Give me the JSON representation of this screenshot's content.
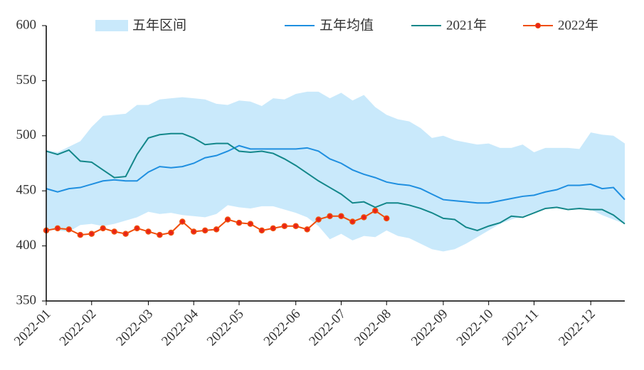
{
  "chart_data": {
    "type": "line",
    "categories": [
      "2022-01",
      null,
      null,
      null,
      "2022-02",
      null,
      null,
      null,
      null,
      "2022-03",
      null,
      null,
      null,
      "2022-04",
      null,
      null,
      null,
      "2022-05",
      null,
      null,
      null,
      null,
      "2022-06",
      null,
      null,
      null,
      "2022-07",
      null,
      null,
      null,
      "2022-08",
      null,
      null,
      null,
      null,
      "2022-09",
      null,
      null,
      null,
      "2022-10",
      null,
      null,
      null,
      "2022-11",
      null,
      null,
      null,
      null,
      "2022-12",
      null,
      null,
      null
    ],
    "band": {
      "name": "五年区间",
      "color": "#c9e9fb",
      "upper": [
        487,
        485,
        490,
        495,
        508,
        518,
        519,
        520,
        528,
        528,
        533,
        534,
        535,
        534,
        533,
        529,
        528,
        532,
        531,
        527,
        534,
        533,
        538,
        540,
        540,
        534,
        539,
        532,
        537,
        526,
        519,
        515,
        513,
        507,
        498,
        500,
        496,
        494,
        492,
        493,
        489,
        489,
        492,
        485,
        489,
        489,
        489,
        488,
        503,
        501,
        500,
        493
      ],
      "lower": [
        415,
        414,
        413,
        419,
        420,
        418,
        420,
        423,
        426,
        431,
        429,
        430,
        428,
        427,
        426,
        429,
        437,
        435,
        434,
        436,
        436,
        433,
        430,
        426,
        418,
        406,
        411,
        405,
        409,
        408,
        414,
        409,
        407,
        402,
        397,
        395,
        397,
        402,
        408,
        414,
        420,
        424,
        427,
        431,
        434,
        435,
        434,
        433,
        433,
        428,
        424,
        420
      ]
    },
    "series": [
      {
        "name": "五年均值",
        "color": "#1f8fe0",
        "values": [
          452,
          449,
          452,
          453,
          456,
          459,
          460,
          459,
          459,
          467,
          472,
          471,
          472,
          475,
          480,
          482,
          486,
          491,
          488,
          488,
          488,
          488,
          488,
          489,
          486,
          479,
          475,
          469,
          465,
          462,
          458,
          456,
          455,
          452,
          447,
          442,
          441,
          440,
          439,
          439,
          441,
          443,
          445,
          446,
          449,
          451,
          455,
          455,
          456,
          452,
          453,
          442
        ]
      },
      {
        "name": "2021年",
        "color": "#13878a",
        "values": [
          486,
          483,
          487,
          477,
          476,
          469,
          462,
          463,
          483,
          498,
          501,
          502,
          502,
          498,
          492,
          493,
          493,
          486,
          485,
          486,
          484,
          479,
          473,
          466,
          459,
          453,
          447,
          439,
          440,
          435,
          439,
          439,
          437,
          434,
          430,
          425,
          424,
          417,
          414,
          418,
          421,
          427,
          426,
          430,
          434,
          435,
          433,
          434,
          433,
          433,
          428,
          420
        ]
      },
      {
        "name": "2022年",
        "color": "#f04e0a",
        "markers": true,
        "values": [
          414,
          416,
          415,
          410,
          411,
          416,
          413,
          411,
          416,
          413,
          410,
          412,
          422,
          413,
          414,
          415,
          424,
          421,
          420,
          414,
          416,
          418,
          418,
          415,
          424,
          427,
          427,
          422,
          426,
          432,
          425,
          null,
          null,
          null,
          null,
          null,
          null,
          null,
          null,
          null,
          null,
          null,
          null,
          null,
          null,
          null,
          null,
          null,
          null,
          null,
          null,
          null
        ]
      }
    ],
    "ylim": [
      350,
      600
    ],
    "yticks": [
      350,
      400,
      450,
      500,
      550,
      600
    ]
  }
}
